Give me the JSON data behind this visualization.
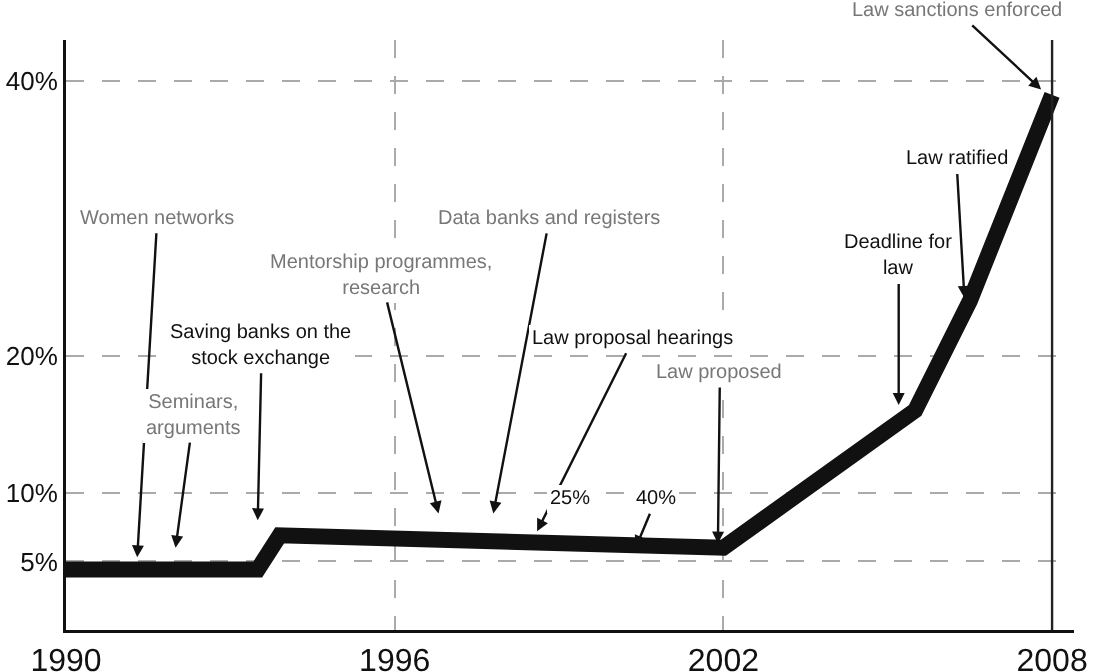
{
  "chart_data": {
    "type": "line",
    "x": [
      1990,
      1993.5,
      1993.9,
      2002,
      2005.5,
      2006.5,
      2008
    ],
    "series": [
      {
        "color": "#111111",
        "values": [
          4.4,
          4.4,
          6.9,
          6.0,
          16,
          24,
          39
        ]
      }
    ],
    "xlim": [
      1990,
      2008.4
    ],
    "ylim": [
      0,
      43
    ],
    "xticks": [
      1990,
      1996,
      2002,
      2008
    ],
    "yticks": [
      {
        "value": 5,
        "label": "5%"
      },
      {
        "value": 10,
        "label": "10%"
      },
      {
        "value": 20,
        "label": "20%"
      },
      {
        "value": 40,
        "label": "40%"
      }
    ],
    "grid": true,
    "marker": "none",
    "line_style": "solid",
    "ref_lines": [
      {
        "axis": "x",
        "value": 2008,
        "color": "#222222",
        "line_style": "solid"
      }
    ],
    "annotations": [
      {
        "text": "Women networks",
        "x": 1991.3,
        "y": 5.3
      },
      "Seminars,\narguments",
      "Saving banks on the\nstock exchange",
      "Mentorship programmes,\nresearch",
      "Data banks and registers",
      {
        "text": "Law proposal hearings",
        "x": 1998.6,
        "y": 7.2
      },
      "25%",
      {
        "text": "40%",
        "x": 2000.4,
        "y": 6.0
      },
      {
        "text": "Law proposed",
        "x": 2001.9,
        "y": 6.3
      },
      {
        "text": "Deadline for\nlaw",
        "x": 2005.2,
        "y": 16.4
      },
      {
        "text": "Law ratified",
        "x": 2006.4,
        "y": 24.2
      },
      {
        "text": "Law sanctions enforced",
        "x": 2007.8,
        "y": 39.4
      }
    ]
  }
}
